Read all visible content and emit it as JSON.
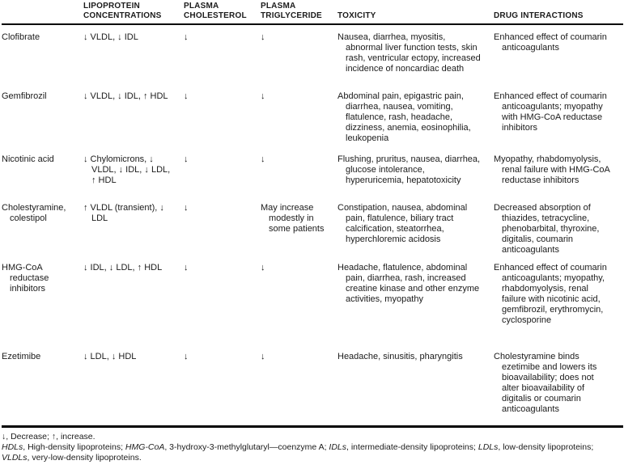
{
  "headers": {
    "drug": "",
    "lipoprotein": "LIPOPROTEIN CONCENTRATIONS",
    "cholesterol": "PLASMA CHOLESTEROL",
    "triglyceride": "PLASMA TRIGLYCERIDE",
    "toxicity": "TOXICITY",
    "interactions": "DRUG INTERACTIONS"
  },
  "rows": [
    {
      "drug": "Clofibrate",
      "lipoprotein": "↓ VLDL, ↓ IDL",
      "cholesterol": "↓",
      "triglyceride": "↓",
      "toxicity": "Nausea, diarrhea, myositis, abnormal liver function tests, skin rash, ventricular ectopy, increased incidence of noncardiac death",
      "interactions": "Enhanced effect of coumarin anticoagulants"
    },
    {
      "drug": "Gemfibrozil",
      "lipoprotein": "↓ VLDL, ↓ IDL, ↑ HDL",
      "cholesterol": "↓",
      "triglyceride": "↓",
      "toxicity": "Abdominal pain, epigastric pain, diarrhea, nausea, vomiting, flatulence, rash, headache, dizziness, anemia, eosinophilia, leukopenia",
      "interactions": "Enhanced effect of coumarin anticoagulants; myopathy with HMG-CoA reductase inhibitors"
    },
    {
      "drug": "Nicotinic acid",
      "lipoprotein": "↓ Chylomicrons, ↓ VLDL, ↓ IDL, ↓ LDL, ↑ HDL",
      "cholesterol": "↓",
      "triglyceride": "↓",
      "toxicity": "Flushing, pruritus, nausea, diarrhea, glucose intolerance, hyperuricemia, hepatotoxicity",
      "interactions": "Myopathy, rhabdomyolysis, renal failure with HMG-CoA reductase inhibitors"
    },
    {
      "drug": "Cholestyramine, colestipol",
      "lipoprotein": "↑ VLDL (transient), ↓ LDL",
      "cholesterol": "↓",
      "triglyceride": "May increase modestly in some patients",
      "toxicity": "Constipation, nausea, abdominal pain, flatulence, biliary tract calcification, steatorrhea, hyperchloremic acidosis",
      "interactions": "Decreased absorption of thiazides, tetracycline, phenobarbital, thyroxine, digitalis, coumarin anticoagulants"
    },
    {
      "drug": "HMG-CoA reductase inhibitors",
      "lipoprotein": "↓ IDL, ↓ LDL, ↑ HDL",
      "cholesterol": "↓",
      "triglyceride": "↓",
      "toxicity": "Headache, flatulence, abdominal pain, diarrhea, rash, increased creatine kinase and other enzyme activities, myopathy",
      "interactions": "Enhanced effect of coumarin anticoagulants; myopathy, rhabdomyolysis, renal failure with nicotinic acid, gemfibrozil, erythromycin, cyclosporine"
    },
    {
      "drug": "Ezetimibe",
      "lipoprotein": "↓ LDL, ↓ HDL",
      "cholesterol": "↓",
      "triglyceride": "↓",
      "toxicity": "Headache, sinusitis, pharyngitis",
      "interactions": "Cholestyramine binds ezetimibe and lowers its bioavailability; does not alter bioavailability of digitalis or coumarin anticoagulants"
    }
  ],
  "footnotes": {
    "arrow_legend": "↓, Decrease; ↑, increase.",
    "abbreviations": [
      {
        "t": "HDLs",
        "i": true
      },
      {
        "t": ", High-density lipoproteins; ",
        "i": false
      },
      {
        "t": "HMG-CoA",
        "i": true
      },
      {
        "t": ", 3-hydroxy-3-methylglutaryl—coenzyme A; ",
        "i": false
      },
      {
        "t": "IDLs",
        "i": true
      },
      {
        "t": ", intermediate-density lipoproteins; ",
        "i": false
      },
      {
        "t": "LDLs",
        "i": true
      },
      {
        "t": ", low-density lipoproteins; ",
        "i": false
      },
      {
        "t": "VLDLs",
        "i": true
      },
      {
        "t": ", very-low-density lipoproteins.",
        "i": false
      }
    ]
  },
  "colors": {
    "text": "#1b1b1b",
    "rule": "#000000",
    "background": "#ffffff"
  }
}
